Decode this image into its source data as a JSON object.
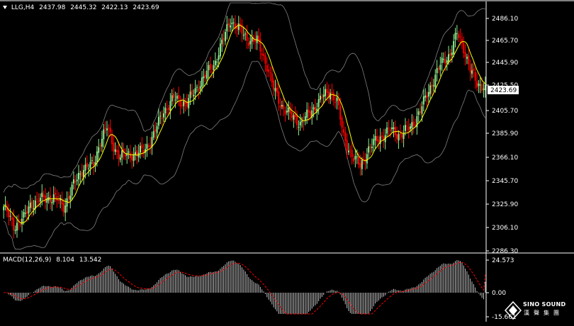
{
  "header": {
    "symbol": "LLG,H4",
    "open": "2437.98",
    "high": "2445.32",
    "low": "2422.13",
    "close": "2423.69"
  },
  "price_axis": {
    "labels": [
      "2486.10",
      "2465.70",
      "2445.90",
      "2425.50",
      "2405.70",
      "2385.90",
      "2366.10",
      "2345.70",
      "2325.90",
      "2306.10",
      "2286.30"
    ],
    "current_price": "2423.69"
  },
  "macd": {
    "label": "MACD(12,26,9)",
    "main_value": "8.104",
    "signal_value": "13.542",
    "axis_labels": [
      "24.573",
      "0.00",
      "-15.661"
    ]
  },
  "watermark": {
    "line1": "SINO SOUND",
    "line2": "漢聲集團"
  },
  "colors": {
    "background": "#000000",
    "bull_candle": "#90EE90",
    "bear_candle": "#FF0000",
    "ma_line": "#FFFF00",
    "bands": "#808080",
    "macd_hist": "#C0C0C0",
    "macd_signal": "#FF0000",
    "axis_text": "#FFFFFF",
    "price_tag_bg": "#FFFFFF"
  },
  "chart_data": [
    {
      "type": "candlestick",
      "title": "LLG,H4",
      "indicators": [
        "Bollinger Bands",
        "Moving Average"
      ],
      "ylim": [
        2286.3,
        2492
      ],
      "grid": false,
      "close_anchors": [
        [
          0,
          2322
        ],
        [
          6,
          2306
        ],
        [
          12,
          2312
        ],
        [
          16,
          2324
        ],
        [
          22,
          2328
        ],
        [
          30,
          2330
        ],
        [
          36,
          2322
        ],
        [
          42,
          2340
        ],
        [
          48,
          2355
        ],
        [
          54,
          2356
        ],
        [
          58,
          2378
        ],
        [
          62,
          2388
        ],
        [
          66,
          2372
        ],
        [
          70,
          2364
        ],
        [
          78,
          2366
        ],
        [
          84,
          2368
        ],
        [
          90,
          2382
        ],
        [
          96,
          2402
        ],
        [
          102,
          2412
        ],
        [
          110,
          2408
        ],
        [
          118,
          2426
        ],
        [
          126,
          2440
        ],
        [
          132,
          2462
        ],
        [
          136,
          2478
        ],
        [
          140,
          2472
        ],
        [
          146,
          2462
        ],
        [
          152,
          2460
        ],
        [
          158,
          2440
        ],
        [
          162,
          2420
        ],
        [
          166,
          2408
        ],
        [
          172,
          2398
        ],
        [
          178,
          2392
        ],
        [
          184,
          2400
        ],
        [
          190,
          2412
        ],
        [
          196,
          2418
        ],
        [
          200,
          2410
        ],
        [
          204,
          2380
        ],
        [
          210,
          2362
        ],
        [
          214,
          2356
        ],
        [
          218,
          2368
        ],
        [
          224,
          2378
        ],
        [
          232,
          2386
        ],
        [
          238,
          2382
        ],
        [
          244,
          2388
        ],
        [
          250,
          2402
        ],
        [
          256,
          2422
        ],
        [
          262,
          2440
        ],
        [
          268,
          2450
        ],
        [
          272,
          2466
        ],
        [
          276,
          2455
        ],
        [
          280,
          2436
        ],
        [
          284,
          2423.69
        ]
      ]
    },
    {
      "type": "bar",
      "title": "MACD(12,26,9)",
      "series": [
        {
          "name": "MACD",
          "last": 8.104
        },
        {
          "name": "Signal",
          "last": 13.542
        }
      ],
      "ylim": [
        -15.661,
        24.573
      ]
    }
  ]
}
